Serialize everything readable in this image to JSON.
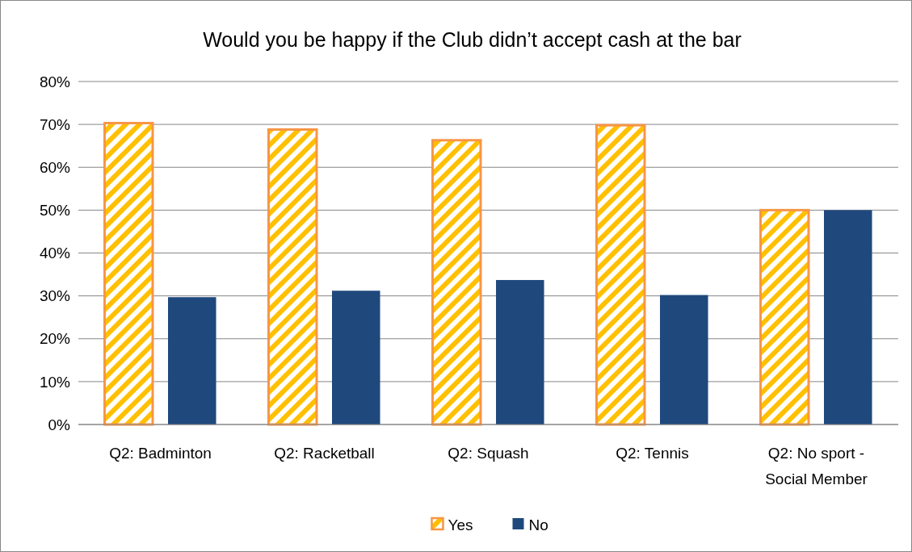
{
  "chart_data": {
    "type": "bar",
    "title": "Would you be happy if the Club didn’t accept cash at the bar",
    "categories": [
      "Q2: Badminton",
      "Q2: Racketball",
      "Q2: Squash",
      "Q2: Tennis",
      "Q2: No sport - Social Member"
    ],
    "series": [
      {
        "name": "Yes",
        "color": "#f79646",
        "values": [
          70.3,
          68.8,
          66.3,
          69.8,
          50
        ]
      },
      {
        "name": "No",
        "color": "#1f497d",
        "values": [
          29.7,
          31.2,
          33.7,
          30.2,
          50
        ]
      }
    ],
    "ylim": [
      0,
      80
    ],
    "yticks": [
      {
        "value": 0,
        "label": "0%"
      },
      {
        "value": 10,
        "label": "10%"
      },
      {
        "value": 20,
        "label": "20%"
      },
      {
        "value": 30,
        "label": "30%"
      },
      {
        "value": 40,
        "label": "40%"
      },
      {
        "value": 50,
        "label": "50%"
      },
      {
        "value": 60,
        "label": "60%"
      },
      {
        "value": 70,
        "label": "70%"
      },
      {
        "value": 80,
        "label": "80%"
      }
    ],
    "grid": "y",
    "legend": "bottom"
  }
}
